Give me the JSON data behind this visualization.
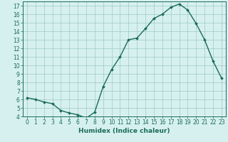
{
  "x": [
    0,
    1,
    2,
    3,
    4,
    5,
    6,
    7,
    8,
    9,
    10,
    11,
    12,
    13,
    14,
    15,
    16,
    17,
    18,
    19,
    20,
    21,
    22,
    23
  ],
  "y": [
    6.2,
    6.0,
    5.7,
    5.5,
    4.7,
    4.4,
    4.2,
    3.8,
    4.5,
    7.5,
    9.5,
    11.0,
    13.0,
    13.2,
    14.3,
    15.5,
    16.0,
    16.8,
    17.2,
    16.5,
    14.9,
    13.0,
    10.5,
    8.5
  ],
  "line_color": "#1a6b5a",
  "marker": "D",
  "marker_size": 2.0,
  "bg_color": "#d6f0f0",
  "grid_color": "#a0c8c8",
  "xlabel": "Humidex (Indice chaleur)",
  "xlim": [
    -0.5,
    23.5
  ],
  "ylim": [
    4,
    17.5
  ],
  "xticks": [
    0,
    1,
    2,
    3,
    4,
    5,
    6,
    7,
    8,
    9,
    10,
    11,
    12,
    13,
    14,
    15,
    16,
    17,
    18,
    19,
    20,
    21,
    22,
    23
  ],
  "yticks": [
    4,
    5,
    6,
    7,
    8,
    9,
    10,
    11,
    12,
    13,
    14,
    15,
    16,
    17
  ],
  "tick_label_size": 5.5,
  "xlabel_fontsize": 6.5,
  "line_width": 1.0
}
